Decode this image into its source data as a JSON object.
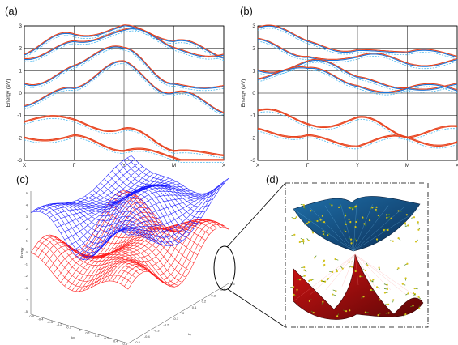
{
  "panels": {
    "a": {
      "label": "(a)"
    },
    "b": {
      "label": "(b)"
    },
    "c": {
      "label": "(c)",
      "z_label": "Energy",
      "kx_label": "kx",
      "ky_label": "ky"
    },
    "d": {
      "label": "(d)"
    }
  },
  "colors": {
    "valence_red": "#e8431e",
    "conduction_blue": "#1b75d8",
    "surface_red": "#ff1a1a",
    "surface_blue": "#1a1aff",
    "dashed_cyan": "#48b8f0"
  },
  "chart_data": [
    {
      "type": "line",
      "panel": "a",
      "xlabel": "",
      "ylabel": "Energy (eV)",
      "ylim": [
        -3,
        3
      ],
      "yticks": [
        "3",
        "2",
        "1",
        "0",
        "-1",
        "-2",
        "-3"
      ],
      "kpath": [
        "X",
        "Γ",
        "Y",
        "M",
        "X"
      ],
      "series": [
        {
          "values": [
            1.7,
            2.6,
            3.0,
            2.3,
            1.55
          ]
        },
        {
          "values": [
            1.5,
            2.3,
            2.8,
            2.0,
            1.7
          ]
        },
        {
          "values": [
            0.4,
            1.2,
            2.0,
            0.4,
            0.3
          ]
        },
        {
          "values": [
            -0.6,
            0.2,
            1.4,
            0.0,
            -0.9
          ]
        },
        {
          "values": [
            -1.3,
            -1.2,
            -1.6,
            -2.6,
            -2.8
          ]
        },
        {
          "values": [
            -2.0,
            -1.9,
            -2.6,
            -2.9,
            -3.0
          ]
        }
      ]
    },
    {
      "type": "line",
      "panel": "b",
      "xlabel": "",
      "ylabel": "Energy (eV)",
      "ylim": [
        -3,
        3
      ],
      "yticks": [
        "3",
        "2",
        "1",
        "0",
        "-1",
        "-2",
        "-3"
      ],
      "kpath": [
        "X",
        "Γ",
        "Y",
        "M",
        "X"
      ],
      "series": [
        {
          "values": [
            2.9,
            2.3,
            1.9,
            1.8,
            1.6
          ]
        },
        {
          "values": [
            2.4,
            1.6,
            1.6,
            1.3,
            1.5
          ]
        },
        {
          "values": [
            1.0,
            1.4,
            0.7,
            0.2,
            0.4
          ]
        },
        {
          "values": [
            0.6,
            1.1,
            0.3,
            0.2,
            0.1
          ]
        },
        {
          "values": [
            -0.8,
            -1.4,
            -1.1,
            -2.0,
            -1.5
          ]
        },
        {
          "values": [
            -1.6,
            -1.9,
            -2.4,
            -2.0,
            -2.2
          ]
        }
      ]
    },
    {
      "type": "surface3d",
      "panel": "c",
      "zticks": [
        "5",
        "4",
        "3",
        "2",
        "1",
        "0",
        "-1",
        "-2",
        "-3",
        "-4",
        "-5"
      ],
      "xticks": [
        "-0.5",
        "-0.4",
        "-0.3",
        "-0.2",
        "-0.1",
        "0",
        "0.1",
        "0.2",
        "0.3",
        "0.4",
        "0.5"
      ],
      "yticks": [
        "-0.5",
        "-0.4",
        "-0.3",
        "-0.2",
        "-0.1",
        "0",
        "0.1",
        "0.2",
        "0.3",
        "0.4",
        "0.5"
      ]
    }
  ]
}
